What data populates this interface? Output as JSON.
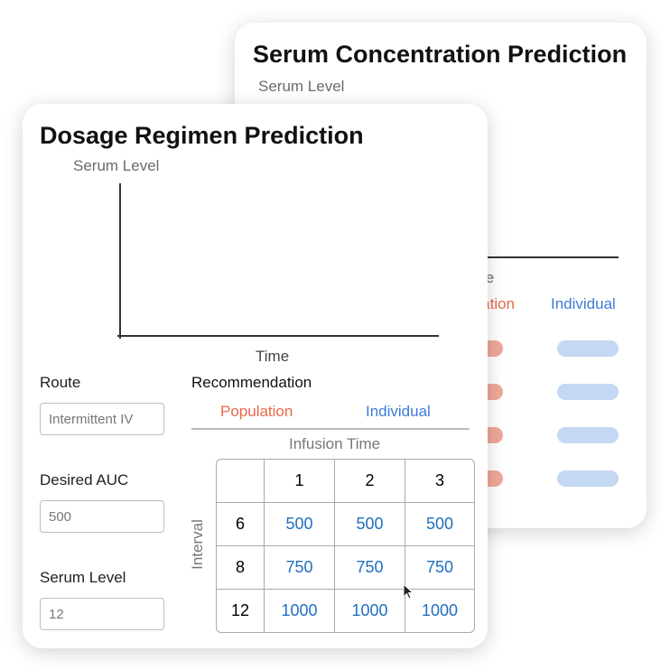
{
  "back_card": {
    "title": "Serum Concentration Prediction",
    "y_label": "Serum Level",
    "x_label": "Time",
    "tabs": [
      "Population",
      "Individual"
    ]
  },
  "front_card": {
    "title": "Dosage Regimen Prediction",
    "y_label": "Serum Level",
    "x_label": "Time",
    "fields": [
      {
        "label": "Route",
        "value": "Intermittent IV"
      },
      {
        "label": "Desired AUC",
        "value": "500"
      },
      {
        "label": "Serum Level",
        "value": "12"
      }
    ],
    "recommendation": {
      "title": "Recommendation",
      "tabs": [
        "Population",
        "Individual"
      ],
      "column_header": "Infusion Time",
      "row_header": "Interval",
      "columns": [
        1,
        2,
        3
      ],
      "rows": [
        {
          "label": 6,
          "values": [
            500,
            500,
            500
          ]
        },
        {
          "label": 8,
          "values": [
            750,
            750,
            750
          ]
        },
        {
          "label": 12,
          "values": [
            1000,
            1000,
            1000
          ]
        }
      ]
    }
  }
}
